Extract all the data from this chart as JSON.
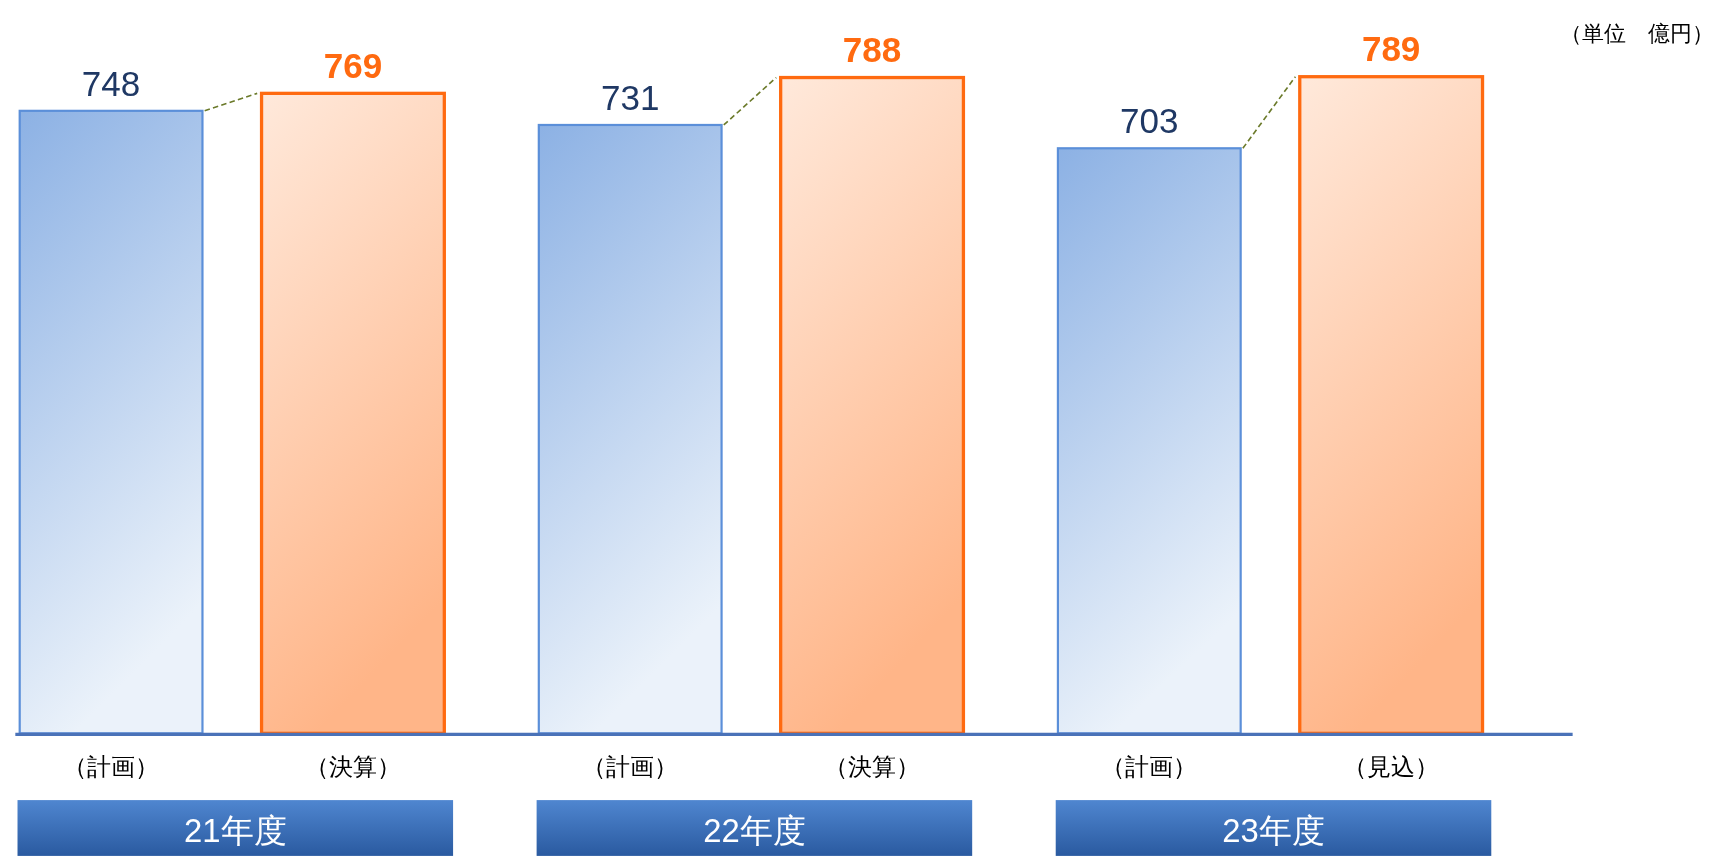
{
  "chart_data": {
    "type": "bar",
    "categories": [
      "（計画）",
      "（決算）",
      "（計画）",
      "（決算）",
      "（計画）",
      "（見込）"
    ],
    "values": [
      748,
      769,
      731,
      788,
      703,
      789
    ],
    "colors": [
      "#5b8fd9",
      "#ff6a10",
      "#5b8fd9",
      "#ff6a10",
      "#5b8fd9",
      "#ff6a10"
    ],
    "data_labels": true,
    "annotations": [
      "（単位　億円）",
      "21年度",
      "22年度",
      "23年度"
    ]
  }
}
